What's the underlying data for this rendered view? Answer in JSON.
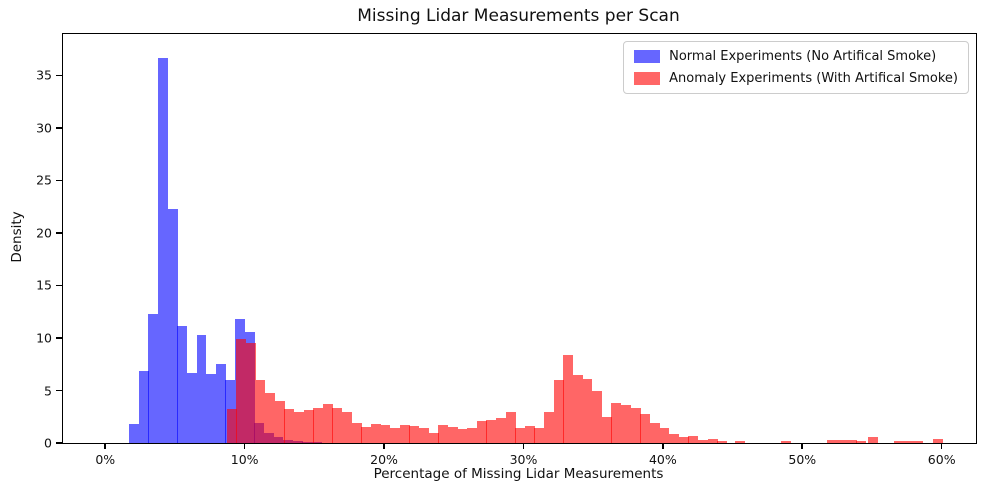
{
  "chart": {
    "title": "Missing Lidar Measurements per Scan",
    "xlabel": "Percentage of Missing Lidar Measurements",
    "ylabel": "Density"
  },
  "legend": {
    "items": [
      {
        "label": "Normal Experiments (No Artifical Smoke)",
        "color": "rgba(0,0,255,0.6)"
      },
      {
        "label": "Anomaly Experiments (With Artifical Smoke)",
        "color": "rgba(255,0,0,0.6)"
      }
    ]
  },
  "chart_data": {
    "type": "histogram",
    "title": "Missing Lidar Measurements per Scan",
    "xlabel": "Percentage of Missing Lidar Measurements",
    "ylabel": "Density",
    "x_unit": "percent",
    "grid": false,
    "legend_position": "upper right",
    "xlim": [
      -3.03,
      62.46
    ],
    "ylim": [
      0,
      38.95
    ],
    "x_ticks": [
      {
        "value": 0,
        "label": "0%"
      },
      {
        "value": 10,
        "label": "10%"
      },
      {
        "value": 20,
        "label": "20%"
      },
      {
        "value": 30,
        "label": "30%"
      },
      {
        "value": 40,
        "label": "40%"
      },
      {
        "value": 50,
        "label": "50%"
      },
      {
        "value": 60,
        "label": "60%"
      }
    ],
    "y_ticks": [
      0,
      5,
      10,
      15,
      20,
      25,
      30,
      35
    ],
    "bin_width_pct": 0.69,
    "series": [
      {
        "name": "Normal Experiments (No Artifical Smoke)",
        "color": "rgba(0,0,255,0.6)",
        "bars_start_pct_density": [
          [
            1.72,
            1.8
          ],
          [
            2.41,
            6.9
          ],
          [
            3.1,
            12.3
          ],
          [
            3.79,
            36.7
          ],
          [
            4.48,
            22.3
          ],
          [
            5.17,
            11.1
          ],
          [
            5.86,
            6.7
          ],
          [
            6.55,
            10.3
          ],
          [
            7.24,
            6.6
          ],
          [
            7.93,
            7.5
          ],
          [
            8.62,
            6.0
          ],
          [
            9.31,
            11.8
          ],
          [
            10.0,
            10.6
          ],
          [
            10.69,
            1.9
          ],
          [
            11.38,
            1.0
          ],
          [
            12.07,
            0.55
          ],
          [
            12.76,
            0.32
          ],
          [
            13.45,
            0.22
          ],
          [
            14.14,
            0.12
          ],
          [
            14.83,
            0.06
          ]
        ]
      },
      {
        "name": "Anomaly Experiments (With Artifical Smoke)",
        "color": "rgba(255,0,0,0.6)",
        "bars_start_pct_density": [
          [
            8.71,
            3.2
          ],
          [
            9.4,
            9.9
          ],
          [
            10.09,
            9.5
          ],
          [
            10.78,
            6.0
          ],
          [
            11.47,
            4.8
          ],
          [
            12.16,
            4.0
          ],
          [
            12.85,
            3.2
          ],
          [
            13.54,
            2.95
          ],
          [
            14.23,
            3.1
          ],
          [
            14.92,
            3.35
          ],
          [
            15.61,
            3.7
          ],
          [
            16.3,
            3.35
          ],
          [
            16.99,
            2.95
          ],
          [
            17.68,
            1.9
          ],
          [
            18.37,
            1.55
          ],
          [
            19.06,
            1.8
          ],
          [
            19.75,
            1.75
          ],
          [
            20.44,
            1.45
          ],
          [
            21.13,
            1.75
          ],
          [
            21.82,
            1.6
          ],
          [
            22.51,
            1.45
          ],
          [
            23.2,
            0.95
          ],
          [
            23.89,
            1.75
          ],
          [
            24.58,
            1.5
          ],
          [
            25.27,
            1.3
          ],
          [
            25.96,
            1.45
          ],
          [
            26.65,
            2.05
          ],
          [
            27.34,
            2.2
          ],
          [
            28.03,
            2.4
          ],
          [
            28.72,
            3.0
          ],
          [
            29.41,
            1.4
          ],
          [
            30.1,
            1.6
          ],
          [
            30.79,
            1.4
          ],
          [
            31.48,
            3.0
          ],
          [
            32.17,
            6.0
          ],
          [
            32.86,
            8.35
          ],
          [
            33.55,
            6.5
          ],
          [
            34.24,
            6.1
          ],
          [
            34.93,
            5.0
          ],
          [
            35.62,
            2.45
          ],
          [
            36.31,
            3.8
          ],
          [
            37.0,
            3.65
          ],
          [
            37.69,
            3.3
          ],
          [
            38.38,
            2.75
          ],
          [
            39.07,
            1.9
          ],
          [
            39.76,
            1.4
          ],
          [
            40.45,
            0.85
          ],
          [
            41.14,
            0.6
          ],
          [
            41.83,
            0.65
          ],
          [
            42.52,
            0.25
          ],
          [
            43.21,
            0.4
          ],
          [
            43.9,
            0.15
          ],
          [
            45.2,
            0.2
          ],
          [
            48.5,
            0.22
          ],
          [
            51.8,
            0.3
          ],
          [
            52.49,
            0.3
          ],
          [
            53.18,
            0.28
          ],
          [
            53.87,
            0.2
          ],
          [
            54.7,
            0.55
          ],
          [
            56.6,
            0.2
          ],
          [
            57.29,
            0.2
          ],
          [
            57.98,
            0.2
          ],
          [
            59.4,
            0.4
          ]
        ]
      }
    ]
  }
}
